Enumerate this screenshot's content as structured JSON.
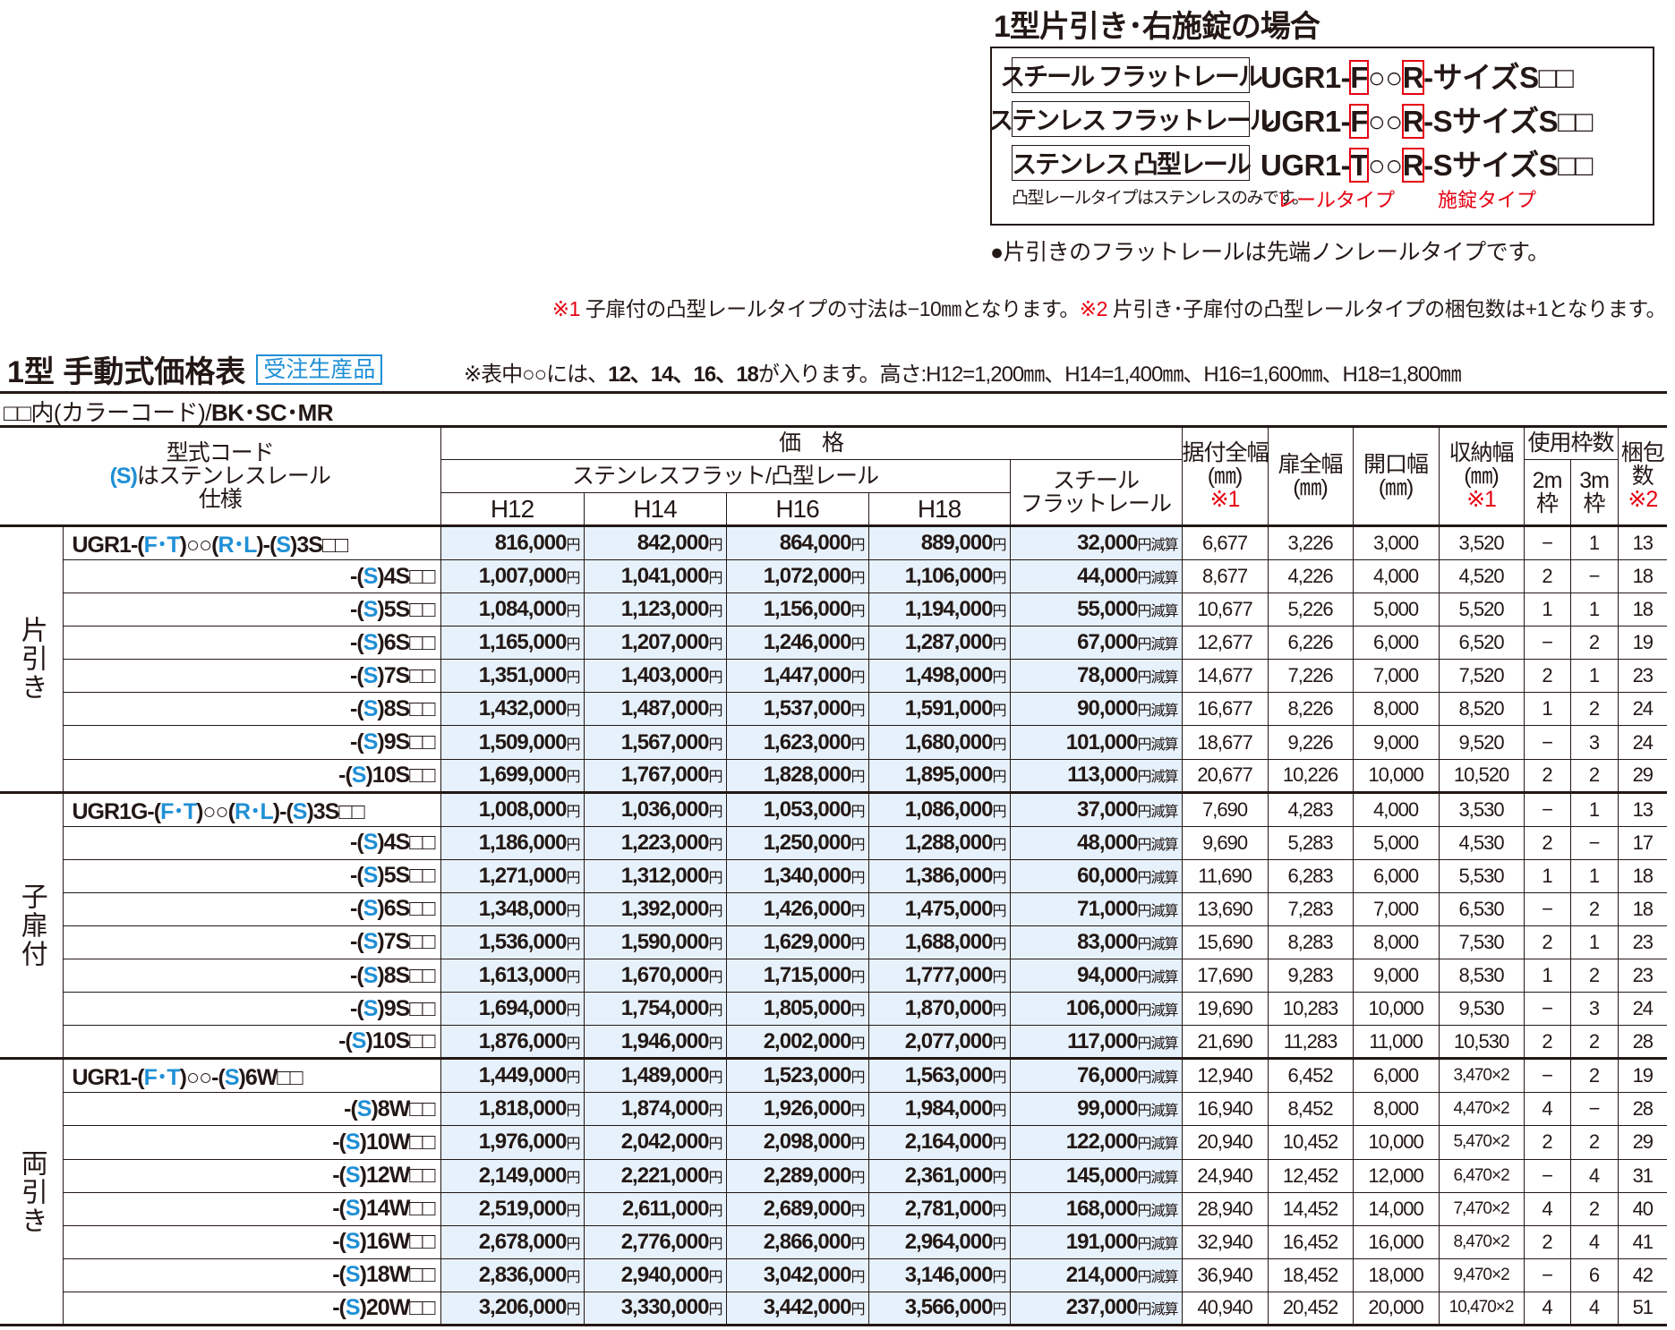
{
  "case": {
    "title": "1型片引き･右施錠の場合",
    "rows": [
      {
        "label": "スチール フラットレール",
        "pre": "UGR1-",
        "rail": "F",
        "mid": "○○",
        "lock": "R",
        "post": "-サイズS□□"
      },
      {
        "label": "ステンレス フラットレール",
        "pre": "UGR1-",
        "rail": "F",
        "mid": "○○",
        "lock": "R",
        "post": "-SサイズS□□"
      },
      {
        "label": "ステンレス 凸型レール",
        "pre": "UGR1-",
        "rail": "T",
        "mid": "○○",
        "lock": "R",
        "post": "-SサイズS□□"
      }
    ],
    "note": "凸型レールタイプはステンレスのみです。",
    "rail_type": "レールタイプ",
    "lock_type": "施錠タイプ"
  },
  "flat_note": "●片引きのフラットレールは先端ノンレールタイプです。",
  "footnote": {
    "m1": "※1",
    "t1": " 子扉付の凸型レールタイプの寸法は−10㎜となります。",
    "m2": "※2",
    "t2": " 片引き･子扉付の凸型レールタイプの梱包数は+1となります。"
  },
  "title": "1型 手動式価格表",
  "badge": "受注生産品",
  "height_note": {
    "a": "※表中○○には、",
    "b": "12、14、16、18",
    "c": "が入ります。高さ:H12=1,200㎜、H14=1,400㎜、H16=1,600㎜、H18=1,800㎜"
  },
  "color_note": {
    "a": "□□内(カラーコード)/",
    "b": "BK･SC･MR"
  },
  "header": {
    "code1": "型式コード",
    "code2s": "(S)",
    "code2": "はステンレスレール",
    "code3": "仕様",
    "price": "価　格",
    "stainless": "ステンレスフラット/凸型レール",
    "steel1": "スチール",
    "steel2": "フラットレール",
    "h": [
      "H12",
      "H14",
      "H16",
      "H18"
    ],
    "install1": "据付全幅",
    "install2": "(㎜)",
    "door1": "扉全幅",
    "door2": "(㎜)",
    "open1": "開口幅",
    "open2": "(㎜)",
    "store1": "収納幅",
    "store2": "(㎜)",
    "m1": "※1",
    "frames": "使用枠数",
    "f2m1": "2m",
    "f2m2": "枠",
    "f3m1": "3m",
    "f3m2": "枠",
    "pack1": "梱包",
    "pack2": "数",
    "m2": "※2"
  },
  "units": {
    "yen": "円",
    "reduce": "円減算"
  },
  "colors": {
    "accent": "#1f8fd6",
    "red": "#e60012",
    "price_bg": "#e6f1fb"
  },
  "groups": [
    {
      "label": "片引き",
      "rows": [
        {
          "code": [
            "UGR1-(",
            "F･T",
            ")○○(",
            "R･L",
            ")-(",
            "S",
            ")3S□□"
          ],
          "p": [
            "816,000",
            "842,000",
            "864,000",
            "889,000"
          ],
          "steel": "32,000",
          "v": [
            "6,677",
            "3,226",
            "3,000",
            "3,520",
            "−",
            "1",
            "13"
          ]
        },
        {
          "code": [
            "-(",
            "S",
            ")4S□□"
          ],
          "p": [
            "1,007,000",
            "1,041,000",
            "1,072,000",
            "1,106,000"
          ],
          "steel": "44,000",
          "v": [
            "8,677",
            "4,226",
            "4,000",
            "4,520",
            "2",
            "−",
            "18"
          ]
        },
        {
          "code": [
            "-(",
            "S",
            ")5S□□"
          ],
          "p": [
            "1,084,000",
            "1,123,000",
            "1,156,000",
            "1,194,000"
          ],
          "steel": "55,000",
          "v": [
            "10,677",
            "5,226",
            "5,000",
            "5,520",
            "1",
            "1",
            "18"
          ]
        },
        {
          "code": [
            "-(",
            "S",
            ")6S□□"
          ],
          "p": [
            "1,165,000",
            "1,207,000",
            "1,246,000",
            "1,287,000"
          ],
          "steel": "67,000",
          "v": [
            "12,677",
            "6,226",
            "6,000",
            "6,520",
            "−",
            "2",
            "19"
          ]
        },
        {
          "code": [
            "-(",
            "S",
            ")7S□□"
          ],
          "p": [
            "1,351,000",
            "1,403,000",
            "1,447,000",
            "1,498,000"
          ],
          "steel": "78,000",
          "v": [
            "14,677",
            "7,226",
            "7,000",
            "7,520",
            "2",
            "1",
            "23"
          ]
        },
        {
          "code": [
            "-(",
            "S",
            ")8S□□"
          ],
          "p": [
            "1,432,000",
            "1,487,000",
            "1,537,000",
            "1,591,000"
          ],
          "steel": "90,000",
          "v": [
            "16,677",
            "8,226",
            "8,000",
            "8,520",
            "1",
            "2",
            "24"
          ]
        },
        {
          "code": [
            "-(",
            "S",
            ")9S□□"
          ],
          "p": [
            "1,509,000",
            "1,567,000",
            "1,623,000",
            "1,680,000"
          ],
          "steel": "101,000",
          "v": [
            "18,677",
            "9,226",
            "9,000",
            "9,520",
            "−",
            "3",
            "24"
          ]
        },
        {
          "code": [
            "-(",
            "S",
            ")10S□□"
          ],
          "p": [
            "1,699,000",
            "1,767,000",
            "1,828,000",
            "1,895,000"
          ],
          "steel": "113,000",
          "v": [
            "20,677",
            "10,226",
            "10,000",
            "10,520",
            "2",
            "2",
            "29"
          ]
        }
      ]
    },
    {
      "label": "子扉付",
      "rows": [
        {
          "code": [
            "UGR1G-(",
            "F･T",
            ")○○(",
            "R･L",
            ")-(",
            "S",
            ")3S□□"
          ],
          "p": [
            "1,008,000",
            "1,036,000",
            "1,053,000",
            "1,086,000"
          ],
          "steel": "37,000",
          "v": [
            "7,690",
            "4,283",
            "4,000",
            "3,530",
            "−",
            "1",
            "13"
          ]
        },
        {
          "code": [
            "-(",
            "S",
            ")4S□□"
          ],
          "p": [
            "1,186,000",
            "1,223,000",
            "1,250,000",
            "1,288,000"
          ],
          "steel": "48,000",
          "v": [
            "9,690",
            "5,283",
            "5,000",
            "4,530",
            "2",
            "−",
            "17"
          ]
        },
        {
          "code": [
            "-(",
            "S",
            ")5S□□"
          ],
          "p": [
            "1,271,000",
            "1,312,000",
            "1,340,000",
            "1,386,000"
          ],
          "steel": "60,000",
          "v": [
            "11,690",
            "6,283",
            "6,000",
            "5,530",
            "1",
            "1",
            "18"
          ]
        },
        {
          "code": [
            "-(",
            "S",
            ")6S□□"
          ],
          "p": [
            "1,348,000",
            "1,392,000",
            "1,426,000",
            "1,475,000"
          ],
          "steel": "71,000",
          "v": [
            "13,690",
            "7,283",
            "7,000",
            "6,530",
            "−",
            "2",
            "18"
          ]
        },
        {
          "code": [
            "-(",
            "S",
            ")7S□□"
          ],
          "p": [
            "1,536,000",
            "1,590,000",
            "1,629,000",
            "1,688,000"
          ],
          "steel": "83,000",
          "v": [
            "15,690",
            "8,283",
            "8,000",
            "7,530",
            "2",
            "1",
            "23"
          ]
        },
        {
          "code": [
            "-(",
            "S",
            ")8S□□"
          ],
          "p": [
            "1,613,000",
            "1,670,000",
            "1,715,000",
            "1,777,000"
          ],
          "steel": "94,000",
          "v": [
            "17,690",
            "9,283",
            "9,000",
            "8,530",
            "1",
            "2",
            "23"
          ]
        },
        {
          "code": [
            "-(",
            "S",
            ")9S□□"
          ],
          "p": [
            "1,694,000",
            "1,754,000",
            "1,805,000",
            "1,870,000"
          ],
          "steel": "106,000",
          "v": [
            "19,690",
            "10,283",
            "10,000",
            "9,530",
            "−",
            "3",
            "24"
          ]
        },
        {
          "code": [
            "-(",
            "S",
            ")10S□□"
          ],
          "p": [
            "1,876,000",
            "1,946,000",
            "2,002,000",
            "2,077,000"
          ],
          "steel": "117,000",
          "v": [
            "21,690",
            "11,283",
            "11,000",
            "10,530",
            "2",
            "2",
            "28"
          ]
        }
      ]
    },
    {
      "label": "両引き",
      "rows": [
        {
          "code": [
            "UGR1-(",
            "F･T",
            ")○○-(",
            "S",
            ")6W□□"
          ],
          "p": [
            "1,449,000",
            "1,489,000",
            "1,523,000",
            "1,563,000"
          ],
          "steel": "76,000",
          "v": [
            "12,940",
            "6,452",
            "6,000",
            "3,470×2",
            "−",
            "2",
            "19"
          ]
        },
        {
          "code": [
            "-(",
            "S",
            ")8W□□"
          ],
          "p": [
            "1,818,000",
            "1,874,000",
            "1,926,000",
            "1,984,000"
          ],
          "steel": "99,000",
          "v": [
            "16,940",
            "8,452",
            "8,000",
            "4,470×2",
            "4",
            "−",
            "28"
          ]
        },
        {
          "code": [
            "-(",
            "S",
            ")10W□□"
          ],
          "p": [
            "1,976,000",
            "2,042,000",
            "2,098,000",
            "2,164,000"
          ],
          "steel": "122,000",
          "v": [
            "20,940",
            "10,452",
            "10,000",
            "5,470×2",
            "2",
            "2",
            "29"
          ]
        },
        {
          "code": [
            "-(",
            "S",
            ")12W□□"
          ],
          "p": [
            "2,149,000",
            "2,221,000",
            "2,289,000",
            "2,361,000"
          ],
          "steel": "145,000",
          "v": [
            "24,940",
            "12,452",
            "12,000",
            "6,470×2",
            "−",
            "4",
            "31"
          ]
        },
        {
          "code": [
            "-(",
            "S",
            ")14W□□"
          ],
          "p": [
            "2,519,000",
            "2,611,000",
            "2,689,000",
            "2,781,000"
          ],
          "steel": "168,000",
          "v": [
            "28,940",
            "14,452",
            "14,000",
            "7,470×2",
            "4",
            "2",
            "40"
          ]
        },
        {
          "code": [
            "-(",
            "S",
            ")16W□□"
          ],
          "p": [
            "2,678,000",
            "2,776,000",
            "2,866,000",
            "2,964,000"
          ],
          "steel": "191,000",
          "v": [
            "32,940",
            "16,452",
            "16,000",
            "8,470×2",
            "2",
            "4",
            "41"
          ]
        },
        {
          "code": [
            "-(",
            "S",
            ")18W□□"
          ],
          "p": [
            "2,836,000",
            "2,940,000",
            "3,042,000",
            "3,146,000"
          ],
          "steel": "214,000",
          "v": [
            "36,940",
            "18,452",
            "18,000",
            "9,470×2",
            "−",
            "6",
            "42"
          ]
        },
        {
          "code": [
            "-(",
            "S",
            ")20W□□"
          ],
          "p": [
            "3,206,000",
            "3,330,000",
            "3,442,000",
            "3,566,000"
          ],
          "steel": "237,000",
          "v": [
            "40,940",
            "20,452",
            "20,000",
            "10,470×2",
            "4",
            "4",
            "51"
          ]
        }
      ]
    }
  ]
}
